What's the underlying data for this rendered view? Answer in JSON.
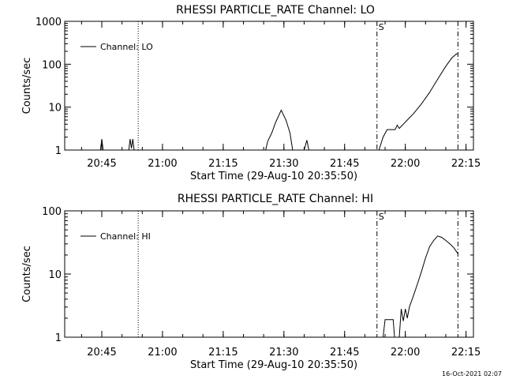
{
  "chart_data": [
    {
      "type": "line",
      "title": "RHESSI PARTICLE_RATE Channel: LO",
      "xlabel": "Start Time (29-Aug-10 20:35:50)",
      "ylabel": "Counts/sec",
      "yscale": "log",
      "ylim": [
        1,
        1000
      ],
      "xlim_minutes_from_start": [
        0,
        101
      ],
      "x_tick_labels": [
        "20:45",
        "21:00",
        "21:15",
        "21:30",
        "21:45",
        "22:00",
        "22:15"
      ],
      "y_tick_labels": [
        "1",
        "10",
        "100",
        "1000"
      ],
      "legend": {
        "label": "Channel: LO",
        "placement": "top-left"
      },
      "markers": [
        {
          "time": "20:54",
          "style": "dotted"
        },
        {
          "time": "21:53",
          "style": "dash-dot",
          "label": "S"
        },
        {
          "time": "22:13",
          "style": "dash-dot"
        }
      ],
      "series": [
        {
          "name": "Channel: LO",
          "points": [
            [
              "20:44:40",
              1
            ],
            [
              "20:45:00",
              1.8
            ],
            [
              "20:45:20",
              1
            ],
            [
              "20:51:40",
              1
            ],
            [
              "20:52:00",
              1.8
            ],
            [
              "20:52:20",
              1.1
            ],
            [
              "20:52:40",
              1.8
            ],
            [
              "20:53:00",
              1
            ],
            [
              "21:25:30",
              1
            ],
            [
              "21:26:00",
              1.6
            ],
            [
              "21:27:00",
              2.5
            ],
            [
              "21:28:00",
              4.5
            ],
            [
              "21:29:20",
              8.5
            ],
            [
              "21:30:30",
              5
            ],
            [
              "21:31:30",
              2.5
            ],
            [
              "21:32:10",
              1
            ],
            [
              "21:35:00",
              1
            ],
            [
              "21:35:40",
              1.7
            ],
            [
              "21:36:10",
              1
            ],
            [
              "21:53:30",
              1
            ],
            [
              "21:54:30",
              2
            ],
            [
              "21:55:30",
              3
            ],
            [
              "21:57:30",
              3
            ],
            [
              "21:58:00",
              3.8
            ],
            [
              "21:58:30",
              3.2
            ],
            [
              "21:59:30",
              4
            ],
            [
              "22:00:30",
              5
            ],
            [
              "22:02:00",
              7
            ],
            [
              "22:04:00",
              12
            ],
            [
              "22:06:00",
              22
            ],
            [
              "22:08:00",
              45
            ],
            [
              "22:10:00",
              90
            ],
            [
              "22:11:30",
              140
            ],
            [
              "22:12:40",
              175
            ],
            [
              "22:13:00",
              175
            ]
          ]
        }
      ]
    },
    {
      "type": "line",
      "title": "RHESSI PARTICLE_RATE Channel: HI",
      "xlabel": "Start Time (29-Aug-10 20:35:50)",
      "ylabel": "Counts/sec",
      "yscale": "log",
      "ylim": [
        1,
        100
      ],
      "xlim_minutes_from_start": [
        0,
        101
      ],
      "x_tick_labels": [
        "20:45",
        "21:00",
        "21:15",
        "21:30",
        "21:45",
        "22:00",
        "22:15"
      ],
      "y_tick_labels": [
        "1",
        "10",
        "100"
      ],
      "legend": {
        "label": "Channel: HI",
        "placement": "top-left"
      },
      "markers": [
        {
          "time": "20:54",
          "style": "dotted"
        },
        {
          "time": "21:53",
          "style": "dash-dot",
          "label": "S"
        },
        {
          "time": "22:13",
          "style": "dash-dot"
        }
      ],
      "series": [
        {
          "name": "Channel: HI",
          "points": [
            [
              "21:54:30",
              1
            ],
            [
              "21:55:00",
              1.9
            ],
            [
              "21:57:00",
              1.9
            ],
            [
              "21:57:20",
              1
            ],
            [
              "21:58:30",
              1
            ],
            [
              "21:59:00",
              2.8
            ],
            [
              "21:59:30",
              1.8
            ],
            [
              "22:00:00",
              2.8
            ],
            [
              "22:00:30",
              2
            ],
            [
              "22:01:00",
              3
            ],
            [
              "22:02:00",
              4.5
            ],
            [
              "22:03:00",
              7
            ],
            [
              "22:04:00",
              11
            ],
            [
              "22:05:00",
              18
            ],
            [
              "22:06:00",
              27
            ],
            [
              "22:07:00",
              34
            ],
            [
              "22:08:00",
              40
            ],
            [
              "22:09:00",
              38
            ],
            [
              "22:10:00",
              34
            ],
            [
              "22:11:00",
              30
            ],
            [
              "22:12:00",
              26
            ],
            [
              "22:13:00",
              21
            ]
          ]
        }
      ]
    }
  ],
  "footer": {
    "timestamp": "16-Oct-2021 02:07"
  }
}
